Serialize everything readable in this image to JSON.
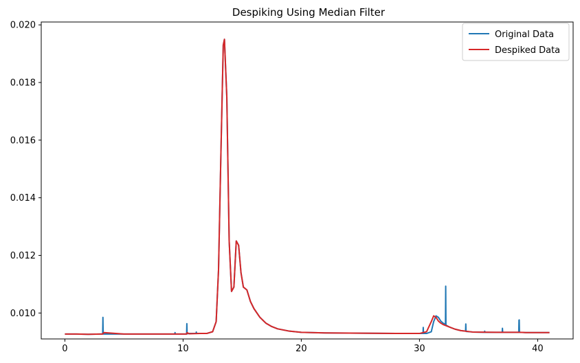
{
  "chart_data": {
    "type": "line",
    "title": "Despiking Using Median Filter",
    "xlabel": "",
    "ylabel": "",
    "xlim": [
      -2,
      43
    ],
    "ylim": [
      0.0091,
      0.0201
    ],
    "xticks": [
      0,
      10,
      20,
      30,
      40
    ],
    "xtick_labels": [
      "0",
      "10",
      "20",
      "30",
      "40"
    ],
    "yticks": [
      0.01,
      0.012,
      0.014,
      0.016,
      0.018,
      0.02
    ],
    "ytick_labels": [
      "0.010",
      "0.012",
      "0.014",
      "0.016",
      "0.018",
      "0.020"
    ],
    "grid": false,
    "legend_position": "top-right",
    "series": [
      {
        "name": "Original Data",
        "color": "#1f77b4",
        "x": [
          0,
          1,
          2,
          3,
          3.2,
          3.22,
          3.24,
          3.3,
          5,
          8,
          9.3,
          9.32,
          9.34,
          10,
          10.3,
          10.32,
          10.34,
          10.5,
          11.1,
          11.12,
          11.14,
          11.5,
          12,
          12.5,
          12.8,
          13.0,
          13.2,
          13.4,
          13.5,
          13.7,
          13.9,
          14.1,
          14.3,
          14.5,
          14.7,
          14.9,
          15.1,
          15.4,
          15.7,
          16.0,
          16.5,
          17.0,
          17.5,
          18.0,
          19.0,
          20.0,
          22.0,
          25.0,
          28.0,
          30.0,
          30.3,
          30.32,
          30.34,
          30.6,
          31.0,
          31.2,
          31.4,
          31.6,
          31.8,
          32.0,
          32.2,
          32.22,
          32.24,
          32.5,
          33.0,
          33.5,
          33.9,
          33.92,
          33.94,
          34.5,
          35.5,
          35.52,
          35.54,
          36.5,
          37.0,
          37.02,
          37.04,
          37.5,
          38.4,
          38.42,
          38.44,
          38.46,
          39.0,
          40.0,
          41.0
        ],
        "y": [
          0.00927,
          0.00927,
          0.00926,
          0.00927,
          0.00927,
          0.00985,
          0.00927,
          0.00927,
          0.00927,
          0.00927,
          0.00927,
          0.00932,
          0.00927,
          0.00927,
          0.00927,
          0.00963,
          0.00928,
          0.00929,
          0.00929,
          0.00934,
          0.00929,
          0.00929,
          0.00929,
          0.00935,
          0.0097,
          0.0115,
          0.0155,
          0.0193,
          0.0195,
          0.0175,
          0.0125,
          0.01075,
          0.0109,
          0.0125,
          0.01235,
          0.0114,
          0.0109,
          0.0108,
          0.0104,
          0.01015,
          0.00985,
          0.00965,
          0.00953,
          0.00945,
          0.00937,
          0.00933,
          0.00931,
          0.0093,
          0.00929,
          0.00929,
          0.00929,
          0.0095,
          0.00929,
          0.00929,
          0.00935,
          0.0097,
          0.0099,
          0.00985,
          0.00972,
          0.00965,
          0.0096,
          0.01093,
          0.00958,
          0.00952,
          0.00944,
          0.00939,
          0.00937,
          0.00962,
          0.00936,
          0.00934,
          0.00933,
          0.00937,
          0.00933,
          0.00933,
          0.00933,
          0.00947,
          0.00933,
          0.00933,
          0.00933,
          0.00975,
          0.00976,
          0.00933,
          0.00932,
          0.00932,
          0.00932
        ]
      },
      {
        "name": "Despiked Data",
        "color": "#d62728",
        "x": [
          0,
          1,
          2,
          3,
          3.2,
          3.3,
          5,
          8,
          10,
          10.3,
          10.35,
          10.5,
          11.5,
          12,
          12.5,
          12.8,
          13.0,
          13.2,
          13.4,
          13.5,
          13.7,
          13.9,
          14.1,
          14.3,
          14.5,
          14.7,
          14.9,
          15.1,
          15.4,
          15.7,
          16.0,
          16.5,
          17.0,
          17.5,
          18.0,
          19.0,
          20.0,
          22.0,
          25.0,
          28.0,
          30.0,
          30.6,
          31.0,
          31.2,
          31.4,
          31.6,
          31.8,
          32.0,
          32.5,
          33.0,
          33.5,
          34.5,
          36.5,
          38.5,
          39.0,
          40.0,
          41.0
        ],
        "y": [
          0.00927,
          0.00927,
          0.00926,
          0.00927,
          0.00927,
          0.00932,
          0.00927,
          0.00927,
          0.00927,
          0.00927,
          0.00932,
          0.00928,
          0.00929,
          0.00929,
          0.00935,
          0.0097,
          0.0115,
          0.0155,
          0.0193,
          0.0195,
          0.0175,
          0.0125,
          0.01075,
          0.0109,
          0.0125,
          0.01235,
          0.0114,
          0.0109,
          0.0108,
          0.0104,
          0.01015,
          0.00985,
          0.00965,
          0.00953,
          0.00945,
          0.00937,
          0.00933,
          0.00931,
          0.0093,
          0.00929,
          0.00929,
          0.00935,
          0.0097,
          0.0099,
          0.00985,
          0.00972,
          0.00965,
          0.0096,
          0.00952,
          0.00944,
          0.00939,
          0.00934,
          0.00933,
          0.00933,
          0.00932,
          0.00932,
          0.00932
        ]
      }
    ]
  }
}
